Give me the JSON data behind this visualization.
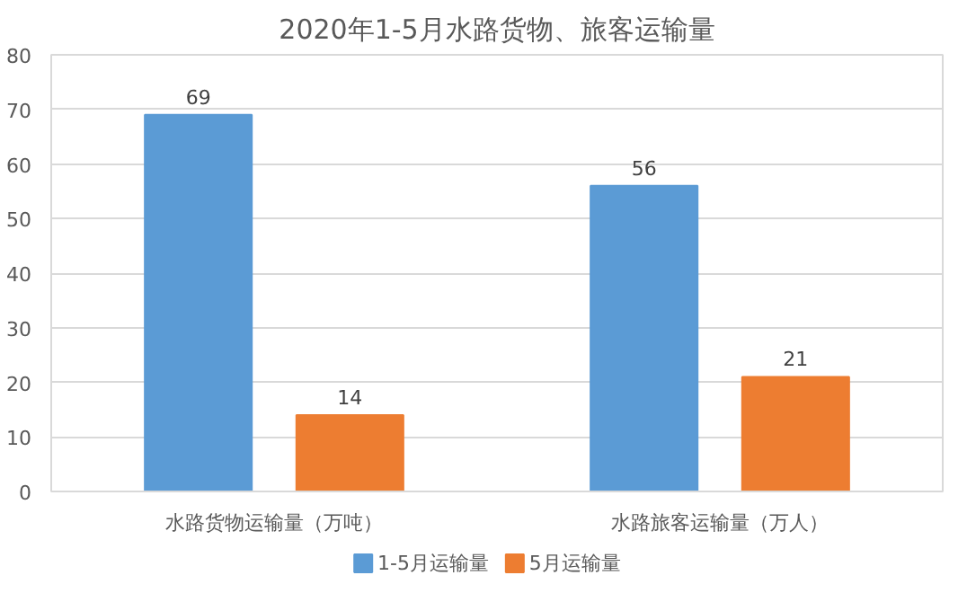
{
  "chart_data": {
    "type": "bar",
    "title": "2020年1-5月水路货物、旅客运输量",
    "categories": [
      "水路货物运输量（万吨）",
      "水路旅客运输量（万人）"
    ],
    "series": [
      {
        "name": "1-5月运输量",
        "color": "#5b9bd5",
        "values": [
          69,
          56
        ]
      },
      {
        "name": "5月运输量",
        "color": "#ed7d31",
        "values": [
          14,
          21
        ]
      }
    ],
    "ylim": [
      0,
      80
    ],
    "yticks": [
      0,
      10,
      20,
      30,
      40,
      50,
      60,
      70,
      80
    ],
    "grid": "y",
    "legend": "bottom",
    "data_labels": true
  }
}
